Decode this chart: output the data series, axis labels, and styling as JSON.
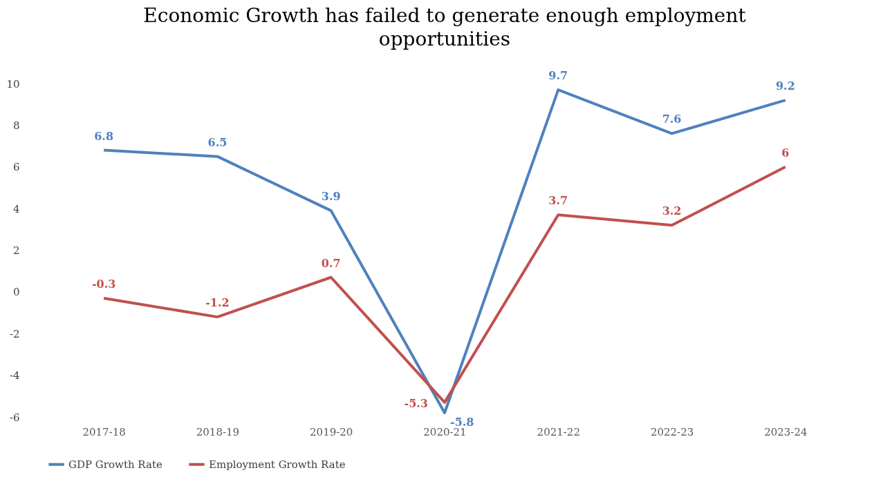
{
  "chart_data": {
    "type": "line",
    "title": "Economic Growth has failed to generate enough employment opportunities",
    "categories": [
      "2017-18",
      "2018-19",
      "2019-20",
      "2020-21",
      "2021-22",
      "2022-23",
      "2023-24"
    ],
    "series": [
      {
        "name": "GDP Growth Rate",
        "color": "#4f81bd",
        "values": [
          6.8,
          6.5,
          3.9,
          -5.8,
          9.7,
          7.6,
          9.2
        ]
      },
      {
        "name": "Employment Growth Rate",
        "color": "#c0504d",
        "values": [
          -0.3,
          -1.2,
          0.7,
          -5.3,
          3.7,
          3.2,
          6
        ]
      }
    ],
    "ylim": [
      -6,
      10
    ],
    "yticks": [
      -6,
      -4,
      -2,
      0,
      2,
      4,
      6,
      8,
      10
    ],
    "grid": false,
    "legend": "bottom",
    "data_labels": true,
    "marker": "none",
    "line_style": "solid"
  }
}
